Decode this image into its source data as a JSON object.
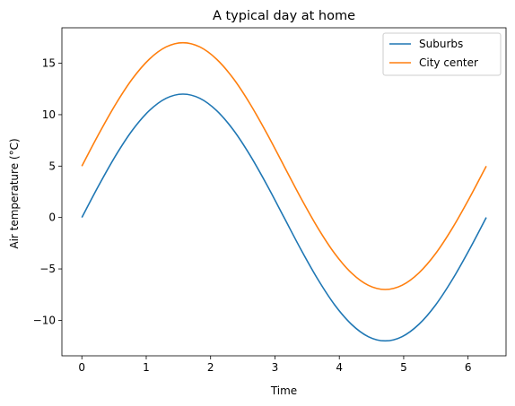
{
  "chart_data": {
    "type": "line",
    "title": "A typical day at home",
    "xlabel": "Time",
    "ylabel": "Air temperature (°C)",
    "xlim": [
      -0.31,
      6.59
    ],
    "ylim": [
      -13.45,
      18.45
    ],
    "xticks": [
      0,
      1,
      2,
      3,
      4,
      5,
      6
    ],
    "yticks": [
      -10,
      -5,
      0,
      5,
      10,
      15
    ],
    "ytick_labels": [
      "−10",
      "−5",
      "0",
      "5",
      "10",
      "15"
    ],
    "grid": false,
    "legend_position": "top-right",
    "x": [
      0,
      0.2618,
      0.5236,
      0.7854,
      1.0472,
      1.309,
      1.5708,
      1.8326,
      2.0944,
      2.3562,
      2.618,
      2.8798,
      3.1416,
      3.4034,
      3.6652,
      3.927,
      4.1888,
      4.4506,
      4.7124,
      4.9742,
      5.236,
      5.4978,
      5.7596,
      6.0214,
      6.2832
    ],
    "series": [
      {
        "name": "Suburbs",
        "color": "#1f77b4",
        "values": [
          0,
          3.11,
          6.0,
          8.49,
          10.39,
          11.59,
          12.0,
          11.59,
          10.39,
          8.49,
          6.0,
          3.11,
          0,
          -3.11,
          -6.0,
          -8.49,
          -10.39,
          -11.59,
          -12.0,
          -11.59,
          -10.39,
          -8.49,
          -6.0,
          -3.11,
          0
        ]
      },
      {
        "name": "City center",
        "color": "#ff7f0e",
        "values": [
          5,
          8.11,
          11.0,
          13.49,
          15.39,
          16.59,
          17.0,
          16.59,
          15.39,
          13.49,
          11.0,
          8.11,
          5,
          1.89,
          -1.0,
          -3.49,
          -5.39,
          -6.59,
          -7.0,
          -6.59,
          -5.39,
          -3.49,
          -1.0,
          1.89,
          5
        ]
      }
    ]
  }
}
